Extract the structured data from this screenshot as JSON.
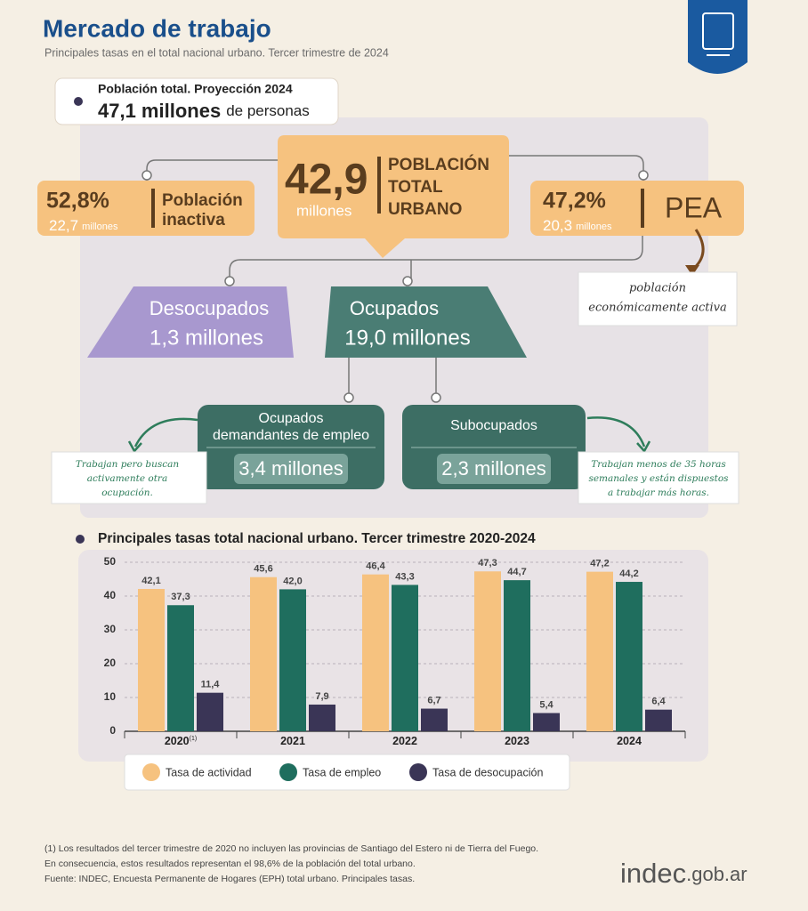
{
  "header": {
    "title": "Mercado de trabajo",
    "subtitle": "Principales tasas en el total nacional urbano. Tercer trimestre de 2024"
  },
  "population": {
    "label": "Población total. Proyección 2024",
    "value": "47,1 millones",
    "unit": "de personas"
  },
  "diagram": {
    "urbano": {
      "value": "42,9",
      "unit": "millones",
      "label_lines": [
        "POBLACIÓN",
        "TOTAL",
        "URBANO"
      ]
    },
    "inactiva": {
      "percent": "52,8%",
      "value": "22,7",
      "unit": "millones",
      "label_lines": [
        "Población",
        "inactiva"
      ]
    },
    "pea": {
      "percent": "47,2%",
      "value": "20,3",
      "unit": "millones",
      "label": "PEA",
      "note_lines": [
        "población",
        "económicamente activa"
      ]
    },
    "desocupados": {
      "label": "Desocupados",
      "value": "1,3 millones"
    },
    "ocupados": {
      "label": "Ocupados",
      "value": "19,0 millones"
    },
    "demandantes": {
      "label_lines": [
        "Ocupados",
        "demandantes de empleo"
      ],
      "value": "3,4 millones",
      "note_lines": [
        "Trabajan pero buscan",
        "activamente otra",
        "ocupación."
      ]
    },
    "subocupados": {
      "label": "Subocupados",
      "value": "2,3 millones",
      "note_lines": [
        "Trabajan menos de 35 horas",
        "semanales y están dispuestos",
        "a trabajar más horas."
      ]
    }
  },
  "chart_data": {
    "type": "bar",
    "title": "Principales tasas total nacional urbano. Tercer trimestre 2020-2024",
    "categories": [
      "2020",
      "2021",
      "2022",
      "2023",
      "2024"
    ],
    "category_footnote": "(1)",
    "series": [
      {
        "name": "Tasa de actividad",
        "color": "#f6c27f",
        "values": [
          42.1,
          45.6,
          46.4,
          47.3,
          47.2
        ],
        "value_labels": [
          "42,1",
          "45,6",
          "46,4",
          "47,3",
          "47,2"
        ]
      },
      {
        "name": "Tasa de empleo",
        "color": "#1f6e5e",
        "values": [
          37.3,
          42.0,
          43.3,
          44.7,
          44.2
        ],
        "value_labels": [
          "37,3",
          "42,0",
          "43,3",
          "44,7",
          "44,2"
        ]
      },
      {
        "name": "Tasa de desocupación",
        "color": "#3a3556",
        "values": [
          11.4,
          7.9,
          6.7,
          5.4,
          6.4
        ],
        "value_labels": [
          "11,4",
          "7,9",
          "6,7",
          "5,4",
          "6,4"
        ]
      }
    ],
    "ylim": [
      0,
      50
    ],
    "yticks": [
      0,
      10,
      20,
      30,
      40,
      50
    ],
    "grid": true
  },
  "footnotes": [
    "(1) Los resultados del tercer trimestre de 2020 no incluyen las provincias de Santiago del Estero ni de Tierra del Fuego.",
    "En consecuencia, estos resultados representan el 98,6% de la población del total urbano.",
    "Fuente: INDEC, Encuesta Permanente de Hogares (EPH) total urbano. Principales tasas."
  ],
  "logo": {
    "main": "indec",
    "domain": ".gob.ar"
  }
}
